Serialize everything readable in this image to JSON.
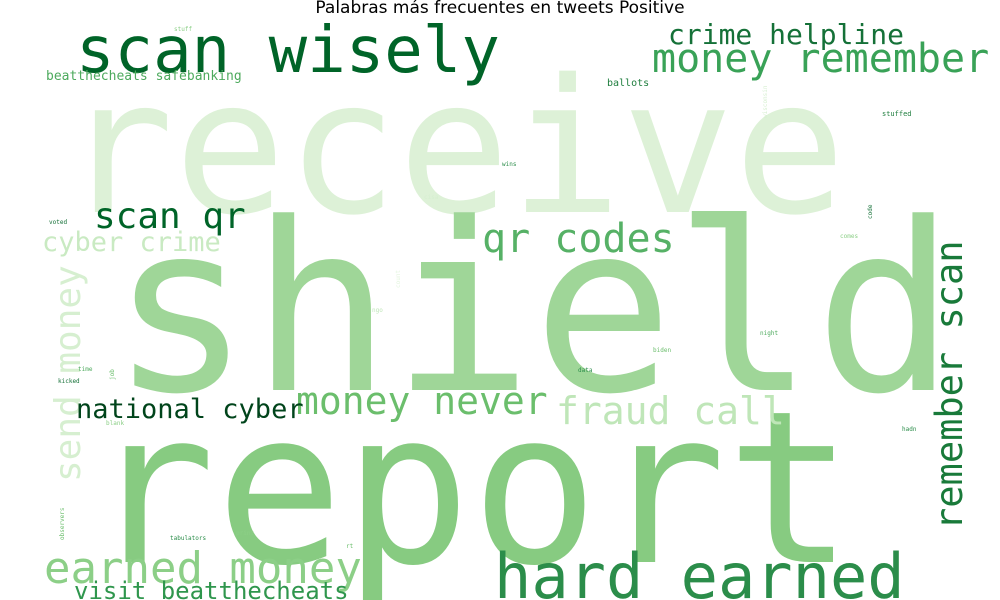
{
  "chart_data": {
    "type": "wordcloud",
    "title": "Palabras más frecuentes en tweets Positive",
    "colormap": "Greens",
    "words": [
      {
        "text": "receive",
        "weight": 100,
        "color": "#ddf1d7",
        "rotate": false
      },
      {
        "text": "shield",
        "weight": 98,
        "color": "#9fd698",
        "rotate": false
      },
      {
        "text": "report",
        "weight": 97,
        "color": "#87cb81",
        "rotate": false
      },
      {
        "text": "scan wisely",
        "weight": 31,
        "color": "#006428",
        "rotate": false
      },
      {
        "text": "hard earned",
        "weight": 30,
        "color": "#2b8d4a",
        "rotate": false
      },
      {
        "text": "earned money",
        "weight": 21,
        "color": "#8ccf87",
        "rotate": false
      },
      {
        "text": "money remember",
        "weight": 19,
        "color": "#39a257",
        "rotate": false
      },
      {
        "text": "qr codes",
        "weight": 19,
        "color": "#56b166",
        "rotate": false
      },
      {
        "text": "money never",
        "weight": 18,
        "color": "#6bbe6c",
        "rotate": false
      },
      {
        "text": "fraud call",
        "weight": 18,
        "color": "#bfe6b8",
        "rotate": false
      },
      {
        "text": "remember scan",
        "weight": 18,
        "color": "#197a3a",
        "rotate": true
      },
      {
        "text": "scan qr",
        "weight": 17,
        "color": "#006428",
        "rotate": false
      },
      {
        "text": "send money",
        "weight": 16,
        "color": "#d6efd0",
        "rotate": true
      },
      {
        "text": "crime helpline",
        "weight": 13,
        "color": "#157138",
        "rotate": false
      },
      {
        "text": "national cyber",
        "weight": 13,
        "color": "#00441b",
        "rotate": false
      },
      {
        "text": "cyber crime",
        "weight": 13,
        "color": "#c9eac2",
        "rotate": false
      },
      {
        "text": "visit beatthecheats",
        "weight": 12,
        "color": "#2f964d",
        "rotate": false
      },
      {
        "text": "beatthecheats safebanking",
        "weight": 9,
        "color": "#4daa5d",
        "rotate": false
      },
      {
        "text": "ballots",
        "weight": 3,
        "color": "#1f7e3e",
        "rotate": false
      },
      {
        "text": "stuffed",
        "weight": 2,
        "color": "#1f7e3e",
        "rotate": false
      },
      {
        "text": "stuff",
        "weight": 2,
        "color": "#8ccf87",
        "rotate": false
      },
      {
        "text": "data",
        "weight": 2,
        "color": "#2b8d4a",
        "rotate": false
      },
      {
        "text": "wins",
        "weight": 2,
        "color": "#2b8d4a",
        "rotate": false
      },
      {
        "text": "biden",
        "weight": 2,
        "color": "#6bbe6c",
        "rotate": false
      },
      {
        "text": "night",
        "weight": 2,
        "color": "#4daa5d",
        "rotate": false
      },
      {
        "text": "hadn",
        "weight": 2,
        "color": "#2b8d4a",
        "rotate": false
      },
      {
        "text": "voted",
        "weight": 2,
        "color": "#157138",
        "rotate": false
      },
      {
        "text": "kicked",
        "weight": 2,
        "color": "#157138",
        "rotate": false
      },
      {
        "text": "time",
        "weight": 2,
        "color": "#4daa5d",
        "rotate": false
      },
      {
        "text": "tabulators",
        "weight": 2,
        "color": "#2b8d4a",
        "rotate": false
      },
      {
        "text": "print",
        "weight": 2,
        "color": "#8ccf87",
        "rotate": false
      },
      {
        "text": "ngo",
        "weight": 2,
        "color": "#bfe6b8",
        "rotate": false
      },
      {
        "text": "cisa",
        "weight": 2,
        "color": "#d6efd0",
        "rotate": false
      },
      {
        "text": "comes",
        "weight": 2,
        "color": "#8ccf87",
        "rotate": false
      },
      {
        "text": "code",
        "weight": 2,
        "color": "#157138",
        "rotate": true
      },
      {
        "text": "wisconsin",
        "weight": 2,
        "color": "#d6efd0",
        "rotate": true
      },
      {
        "text": "observers",
        "weight": 2,
        "color": "#6bbe6c",
        "rotate": true
      },
      {
        "text": "job",
        "weight": 2,
        "color": "#6bbe6c",
        "rotate": true
      },
      {
        "text": "blank",
        "weight": 2,
        "color": "#8ccf87",
        "rotate": false
      },
      {
        "text": "count",
        "weight": 2,
        "color": "#e4f5df",
        "rotate": true
      },
      {
        "text": "rt",
        "weight": 2,
        "color": "#6bbe6c",
        "rotate": false
      }
    ]
  }
}
